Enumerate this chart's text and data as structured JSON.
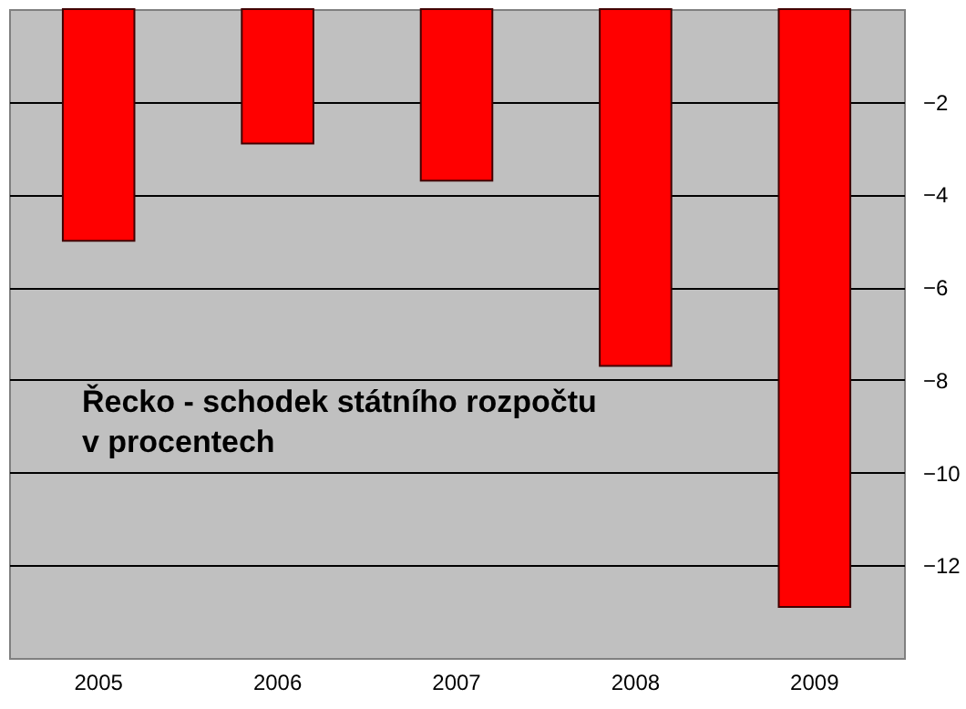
{
  "chart_data": {
    "type": "bar",
    "title": "Řecko - schodek státního rozpočtu v procentech",
    "categories": [
      "2005",
      "2006",
      "2007",
      "2008",
      "2009"
    ],
    "values": [
      -5.0,
      -2.9,
      -3.7,
      -7.7,
      -12.9
    ],
    "color": "#ff0000",
    "ylim": [
      -14,
      0
    ],
    "yticks": [
      -2,
      -4,
      -6,
      -8,
      -10,
      -12
    ],
    "grid": "y"
  }
}
